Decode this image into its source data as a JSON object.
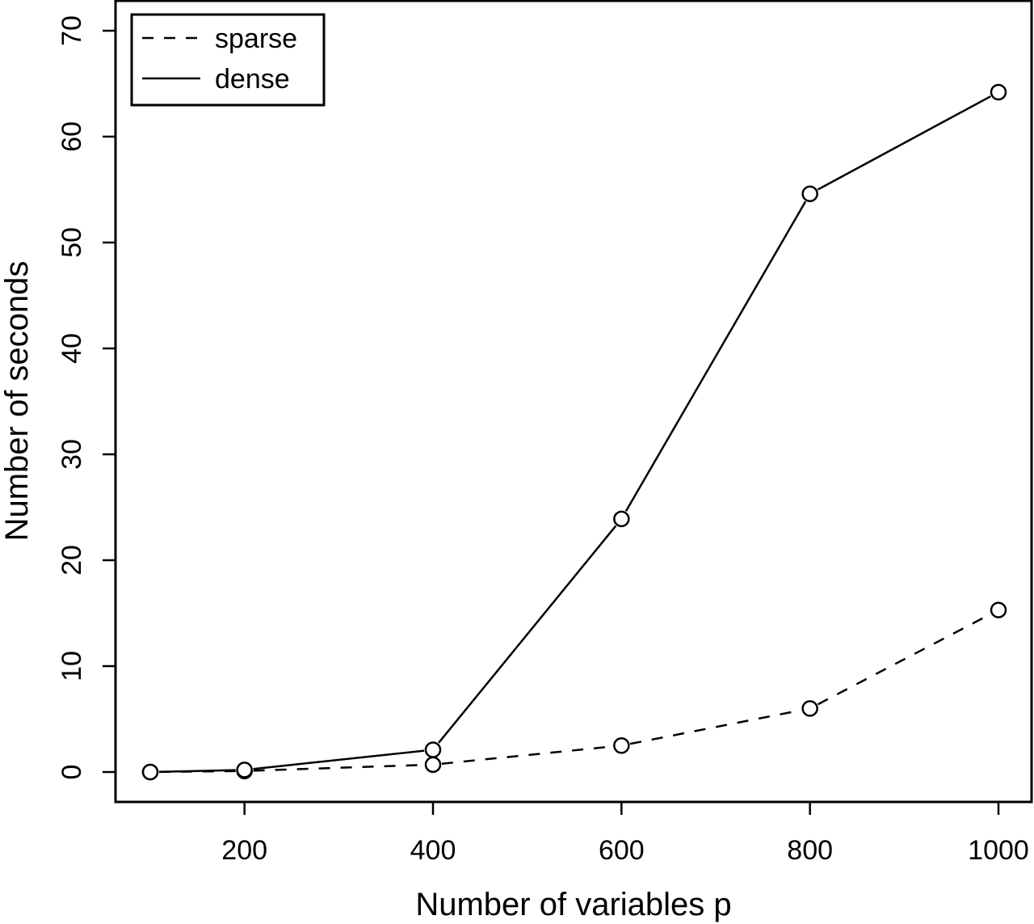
{
  "chart_data": {
    "type": "line",
    "xlabel": "Number of variables p",
    "ylabel": "Number of seconds",
    "xlim": [
      100,
      1000
    ],
    "ylim": [
      0,
      70
    ],
    "xticks": [
      200,
      400,
      600,
      800,
      1000
    ],
    "yticks": [
      0,
      10,
      20,
      30,
      40,
      50,
      60,
      70
    ],
    "grid": false,
    "legend_position": "top-left",
    "x": [
      100,
      200,
      400,
      600,
      800,
      1000
    ],
    "series": [
      {
        "name": "sparse",
        "line_style": "dashed",
        "marker": "open-circle",
        "values": [
          0.0,
          0.1,
          0.7,
          2.5,
          6.0,
          15.3
        ]
      },
      {
        "name": "dense",
        "line_style": "solid",
        "marker": "open-circle",
        "values": [
          0.0,
          0.2,
          2.1,
          23.9,
          54.6,
          64.2
        ]
      }
    ]
  }
}
